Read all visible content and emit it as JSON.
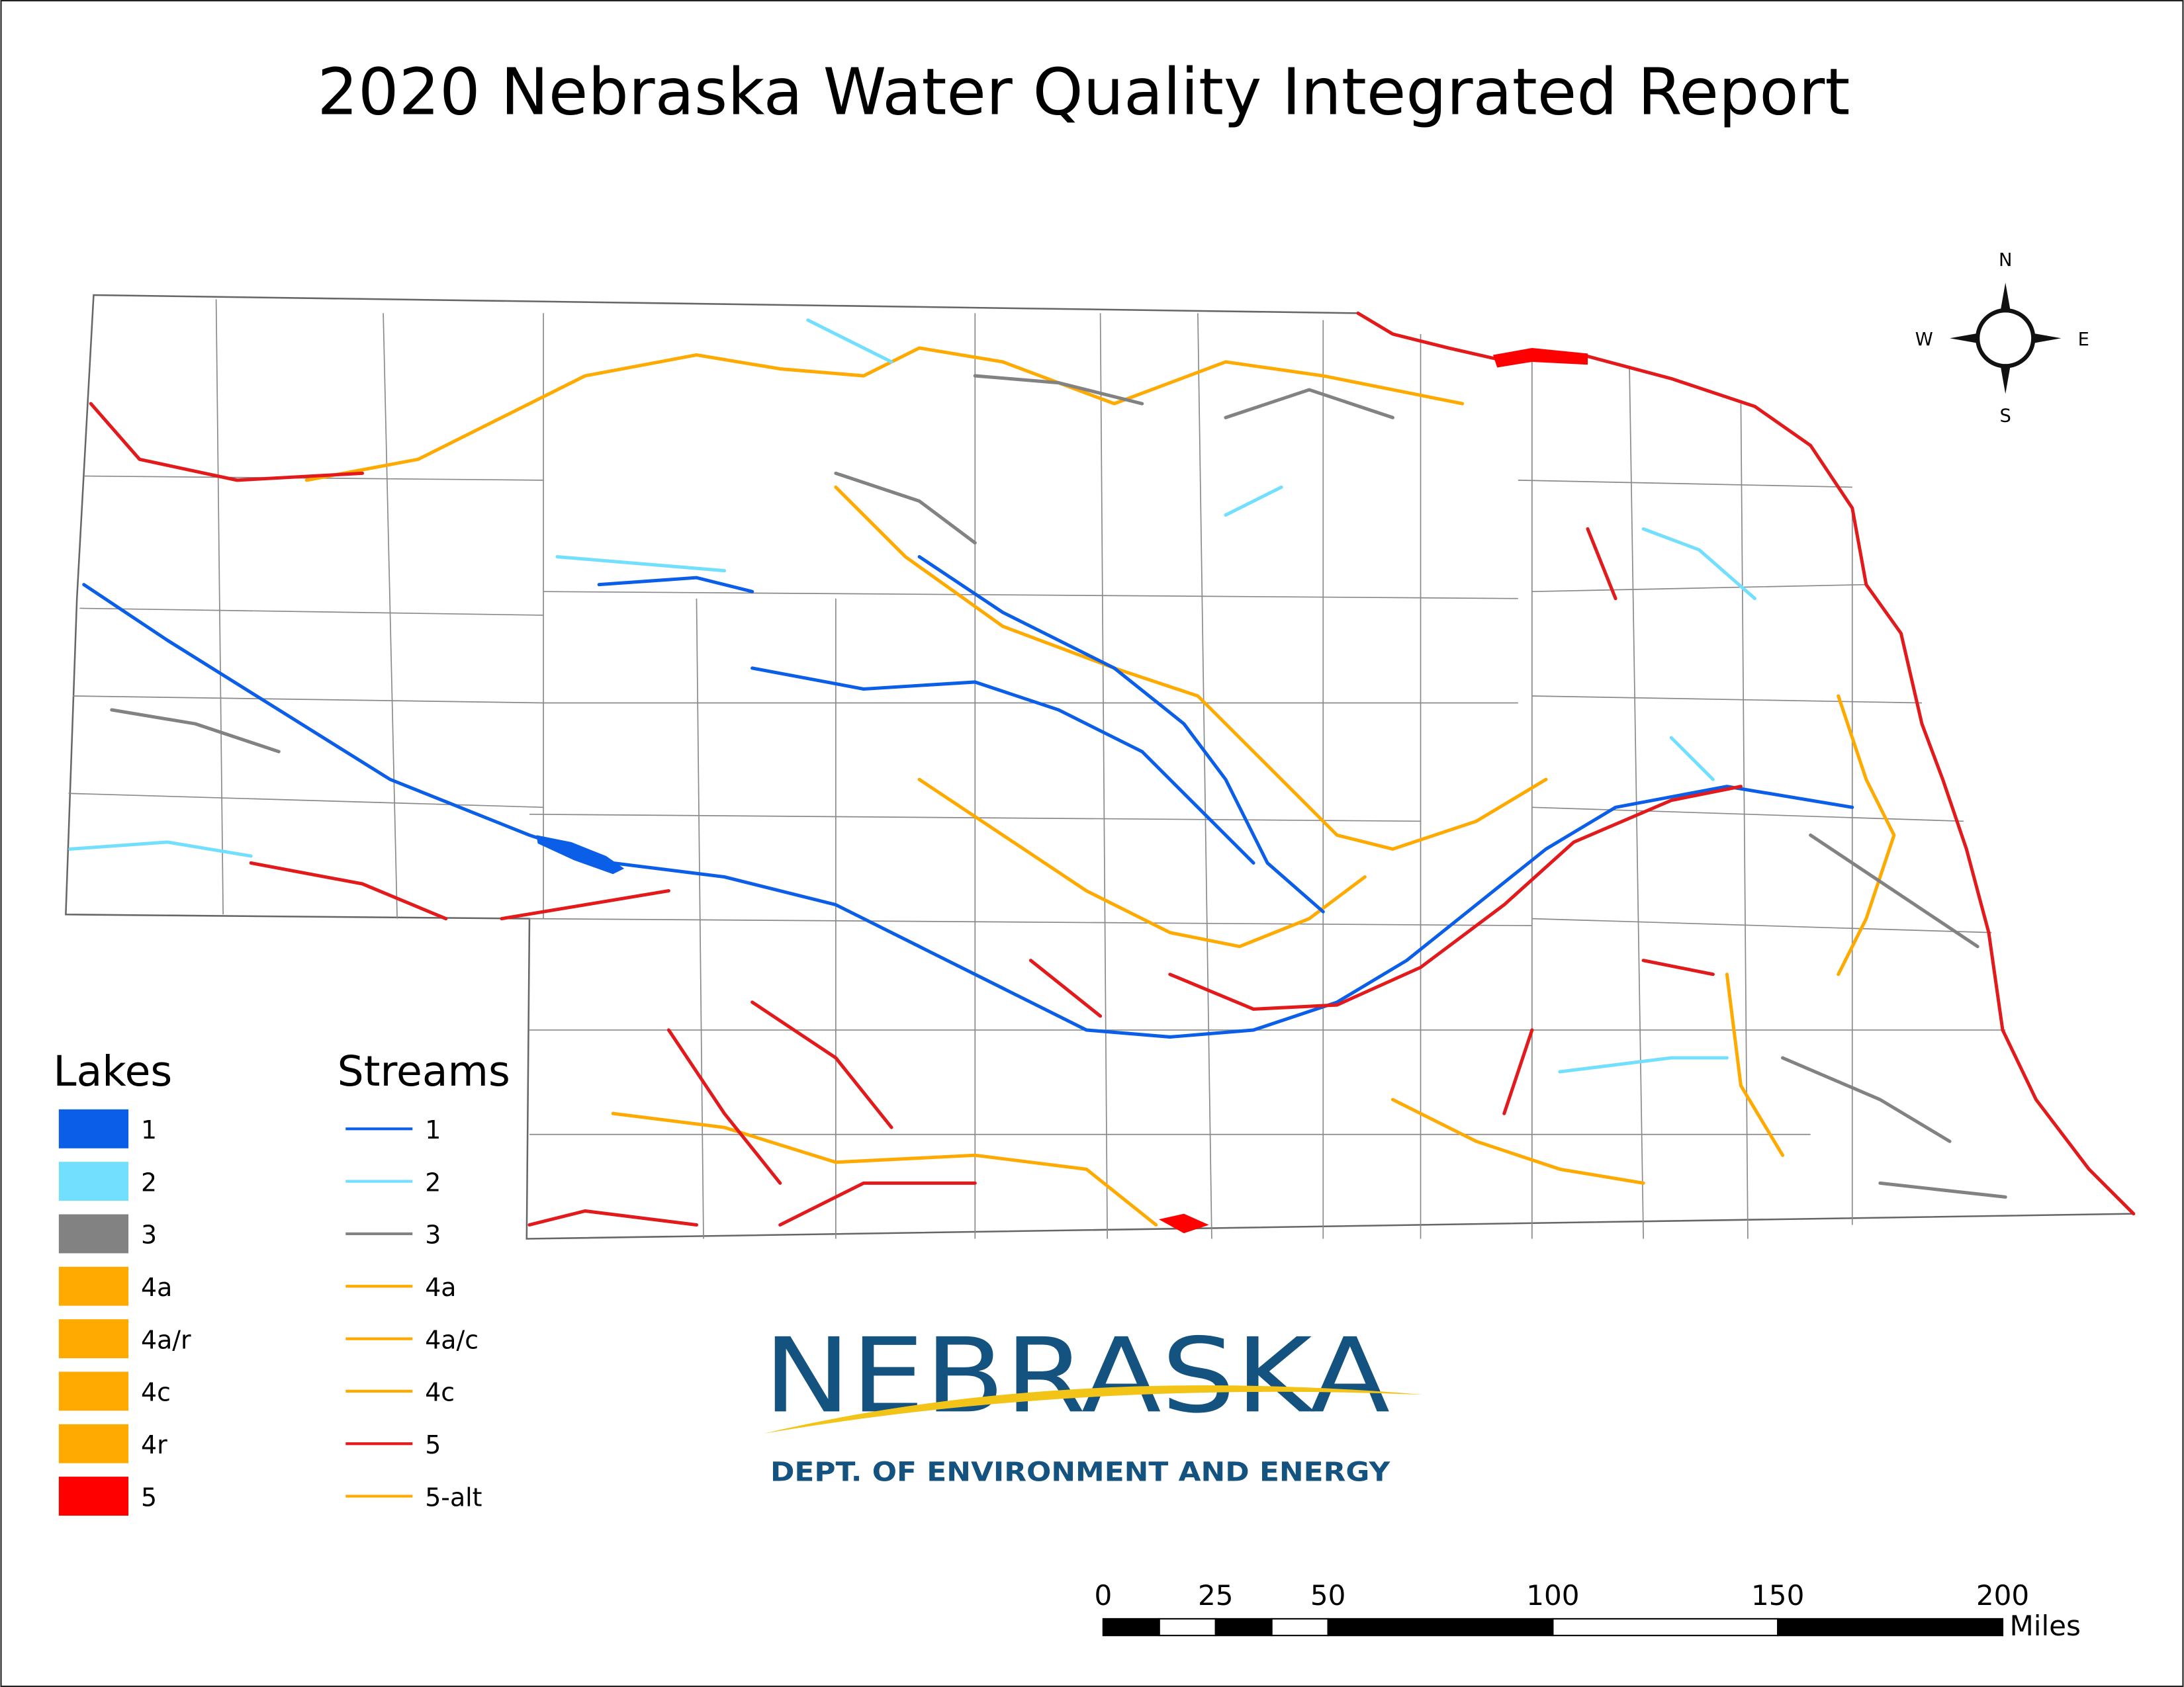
{
  "title": "2020 Nebraska Water Quality Integrated Report",
  "compass": {
    "north": "N",
    "south": "S",
    "east": "E",
    "west": "W"
  },
  "legend": {
    "lakes": {
      "title": "Lakes",
      "items": [
        {
          "label": "1",
          "color": "#0a5ee8"
        },
        {
          "label": "2",
          "color": "#73dfff"
        },
        {
          "label": "3",
          "color": "#828282"
        },
        {
          "label": "4a",
          "color": "#ffaa00"
        },
        {
          "label": "4a/r",
          "color": "#ffaa00"
        },
        {
          "label": "4c",
          "color": "#ffaa00"
        },
        {
          "label": "4r",
          "color": "#ffaa00"
        },
        {
          "label": "5",
          "color": "#ff0000"
        }
      ]
    },
    "streams": {
      "title": "Streams",
      "items": [
        {
          "label": "1",
          "color": "#0a5ee8"
        },
        {
          "label": "2",
          "color": "#73dfff"
        },
        {
          "label": "3",
          "color": "#828282"
        },
        {
          "label": "4a",
          "color": "#ffaa00"
        },
        {
          "label": "4a/c",
          "color": "#ffaa00"
        },
        {
          "label": "4c",
          "color": "#ffaa00"
        },
        {
          "label": "5",
          "color": "#e31a1c"
        },
        {
          "label": "5-alt",
          "color": "#ffaa00"
        }
      ]
    }
  },
  "logo": {
    "name": "NEBRASKA",
    "subtitle": "DEPT. OF ENVIRONMENT AND ENERGY"
  },
  "scale_bar": {
    "ticks": [
      0,
      25,
      50,
      100,
      150,
      200
    ],
    "unit": "Miles"
  }
}
